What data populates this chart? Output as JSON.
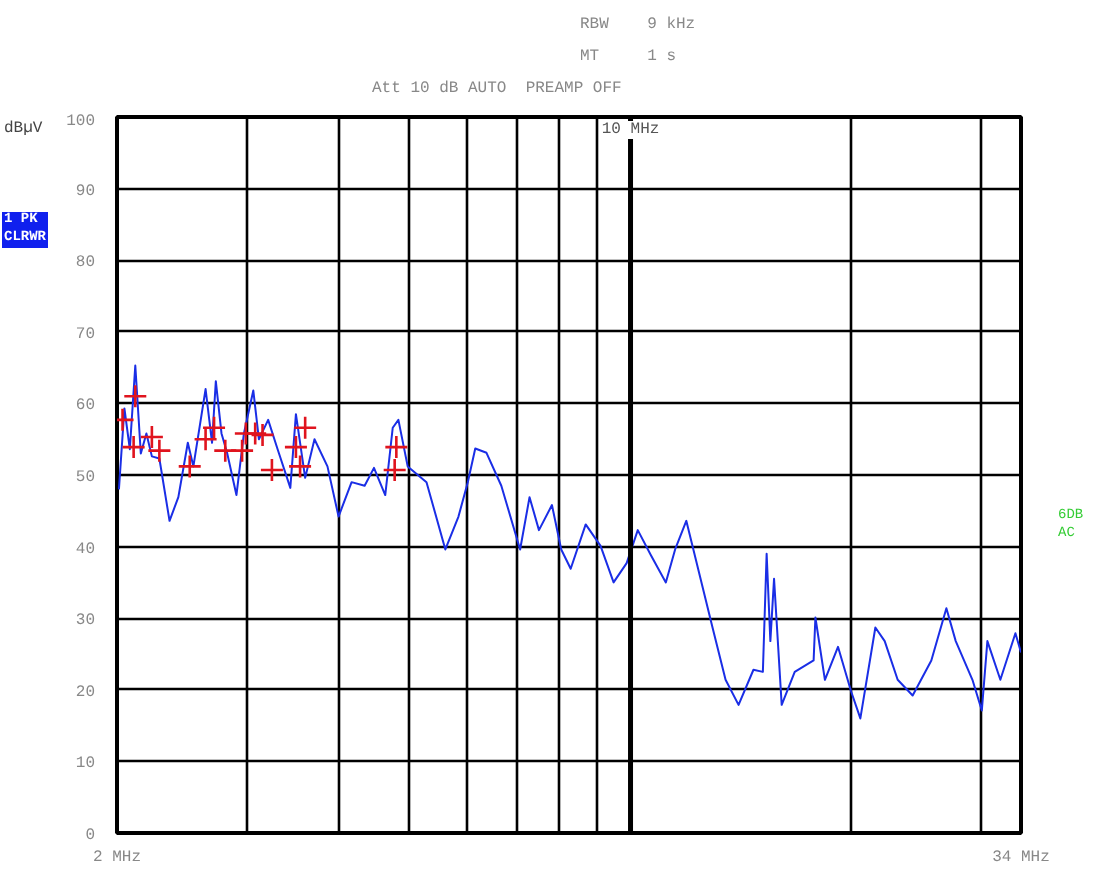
{
  "chart_data": {
    "type": "line",
    "ylabel": "dBµV",
    "log": "x",
    "xlim": [
      2,
      34
    ],
    "ylim": [
      0,
      100
    ],
    "xticks": [
      {
        "value": 2,
        "label": "2 MHz"
      },
      {
        "value": 3,
        "label": null
      },
      {
        "value": 4,
        "label": null
      },
      {
        "value": 5,
        "label": null
      },
      {
        "value": 6,
        "label": null
      },
      {
        "value": 7,
        "label": null
      },
      {
        "value": 8,
        "label": null
      },
      {
        "value": 9,
        "label": null
      },
      {
        "value": 10,
        "label": null
      },
      {
        "value": 20,
        "label": null
      },
      {
        "value": 30,
        "label": null
      },
      {
        "value": 34,
        "label": "34 MHz"
      }
    ],
    "yticks": [
      0,
      10,
      20,
      30,
      40,
      50,
      60,
      70,
      80,
      90,
      100
    ],
    "grid": true,
    "ref_lines": [
      {
        "axis": "x",
        "value": 10,
        "label": "10 MHz"
      }
    ],
    "annotations": [
      "RBW    9 kHz",
      "MT     1 s",
      "Att 10 dB AUTO  PREAMP OFF",
      "1 PK\nCLRWR",
      "6DB\nAC"
    ],
    "series": [
      {
        "color": "#1a2ee6",
        "line_style": "solid",
        "x": [
          2.012,
          2.047,
          2.082,
          2.118,
          2.155,
          2.193,
          2.231,
          2.284,
          2.358,
          2.424,
          2.497,
          2.541,
          2.64,
          2.694,
          2.726,
          2.775,
          2.824,
          2.908,
          2.977,
          3.066,
          3.12,
          3.212,
          3.306,
          3.443,
          3.504,
          3.607,
          3.714,
          3.868,
          4.005,
          4.172,
          4.346,
          4.475,
          4.636,
          4.746,
          4.831,
          4.974,
          5.276,
          5.597,
          5.832,
          6.005,
          6.147,
          6.367,
          6.67,
          7.075,
          7.287,
          7.505,
          7.817,
          8.048,
          8.29,
          8.689,
          9.103,
          9.483,
          9.879,
          10.23,
          10.66,
          11.17,
          11.5,
          11.91,
          12.49,
          12.93,
          13.47,
          14.03,
          14.7,
          15.14,
          15.32,
          15.5,
          15.68,
          16.06,
          16.73,
          17.75,
          17.85,
          18.39,
          19.16,
          19.96,
          20.55,
          21.54,
          22.18,
          23.1,
          24.21,
          25.67,
          26.91,
          27.71,
          29.2,
          30.07,
          30.6,
          31.87,
          33.41,
          34.0
        ],
        "values": [
          48,
          59.3,
          53.6,
          65.3,
          53,
          55.8,
          52.6,
          52.3,
          43.6,
          46.9,
          54.5,
          51.2,
          62,
          54.5,
          63.1,
          55.8,
          53.1,
          47.2,
          55.8,
          61.8,
          55,
          57.7,
          53.7,
          48.2,
          58.5,
          49.6,
          55,
          51.2,
          44.2,
          49,
          48.5,
          51,
          47.2,
          56.6,
          57.7,
          51.2,
          49,
          39.6,
          44.2,
          49,
          53.7,
          53.1,
          48.5,
          39.6,
          46.9,
          42.3,
          45.8,
          39.6,
          36.9,
          43.1,
          40.1,
          35,
          37.7,
          42.3,
          38.8,
          35,
          39.6,
          43.6,
          35,
          28.7,
          21.4,
          17.9,
          22.8,
          22.5,
          39,
          26.8,
          35.5,
          17.9,
          22.5,
          24.1,
          30.1,
          21.4,
          26,
          19.8,
          16,
          28.7,
          26.8,
          21.4,
          19.2,
          24.1,
          31.4,
          26.8,
          21.4,
          17.1,
          26.8,
          21.4,
          27.9,
          25.2
        ]
      },
      {
        "type": "scatter",
        "color": "#e0141e",
        "marker": "cross",
        "x": [
          2.035,
          2.107,
          2.118,
          2.231,
          2.284,
          2.512,
          2.64,
          2.711,
          2.808,
          2.96,
          2.995,
          3.084,
          3.156,
          3.25,
          3.504,
          3.55,
          3.607,
          4.775,
          4.8
        ],
        "values": [
          57.7,
          53.9,
          61,
          55.3,
          53.4,
          51.2,
          55,
          56.6,
          53.4,
          53.4,
          55.8,
          55.8,
          55.6,
          50.7,
          53.9,
          51.2,
          56.6,
          50.7,
          53.9
        ]
      }
    ]
  }
}
